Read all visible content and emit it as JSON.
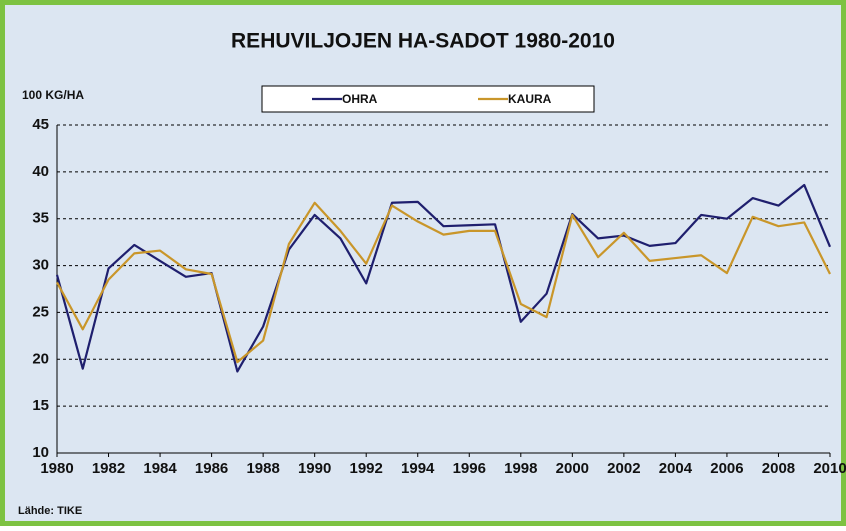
{
  "chart_data": {
    "type": "line",
    "title": "REHUVILJOJEN HA-SADOT 1980-2010",
    "y_label": "100 KG/HA",
    "source": "Lähde: TIKE",
    "x": [
      1980,
      1981,
      1982,
      1983,
      1984,
      1985,
      1986,
      1987,
      1988,
      1989,
      1990,
      1991,
      1992,
      1993,
      1994,
      1995,
      1996,
      1997,
      1998,
      1999,
      2000,
      2001,
      2002,
      2003,
      2004,
      2005,
      2006,
      2007,
      2008,
      2009,
      2010
    ],
    "series": [
      {
        "name": "OHRA",
        "color": "#1f1f6e",
        "values": [
          29,
          19,
          29.7,
          32.2,
          30.5,
          28.8,
          29.2,
          18.7,
          23.5,
          31.7,
          35.4,
          32.9,
          28.1,
          36.7,
          36.8,
          34.2,
          34.3,
          34.4,
          24,
          27,
          35.5,
          32.9,
          33.2,
          32.1,
          32.4,
          35.4,
          35,
          37.2,
          36.4,
          38.6,
          32
        ]
      },
      {
        "name": "KAURA",
        "color": "#c9962a",
        "values": [
          28.2,
          23.2,
          28.5,
          31.3,
          31.6,
          29.6,
          29.1,
          19.7,
          22,
          32.3,
          36.7,
          33.7,
          30.2,
          36.4,
          34.7,
          33.3,
          33.7,
          33.7,
          25.9,
          24.5,
          35.4,
          30.9,
          33.5,
          30.5,
          30.8,
          31.1,
          29.2,
          35.2,
          34.2,
          34.6,
          29.1
        ]
      }
    ],
    "xlim": [
      1980,
      2010
    ],
    "xticks": [
      1980,
      1982,
      1984,
      1986,
      1988,
      1990,
      1992,
      1994,
      1996,
      1998,
      2000,
      2002,
      2004,
      2006,
      2008,
      2010
    ],
    "ylim": [
      10,
      45
    ],
    "yticks": [
      10,
      15,
      20,
      25,
      30,
      35,
      40,
      45
    ],
    "grid": true,
    "legend": "top"
  }
}
